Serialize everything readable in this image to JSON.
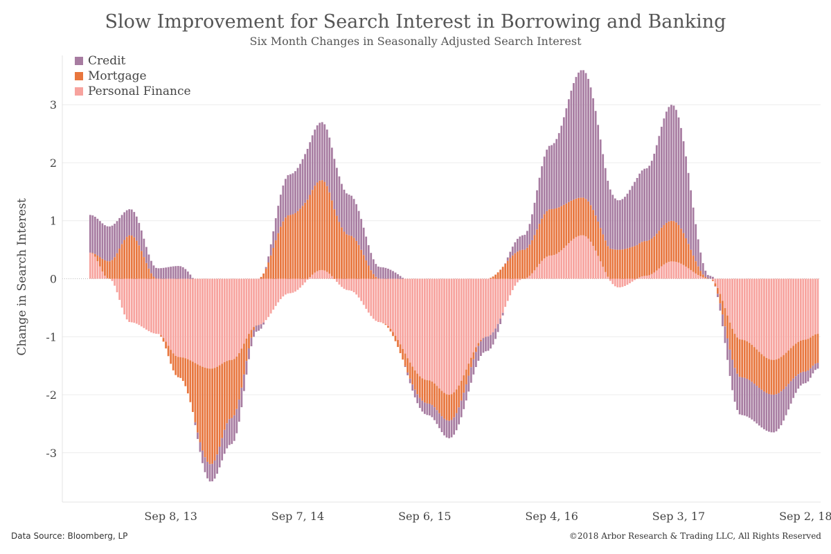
{
  "header": {
    "title": "Slow Improvement for Search Interest in Borrowing and Banking",
    "subtitle": "Six Month Changes in Seasonally Adjusted Search Interest"
  },
  "footer": {
    "source": "Data Source: Bloomberg, LP",
    "copyright": "©2018 Arbor Research & Trading LLC, All Rights Reserved"
  },
  "legend": [
    {
      "label": "Credit",
      "color": "#a77ca1"
    },
    {
      "label": "Mortgage",
      "color": "#e8763e"
    },
    {
      "label": "Personal Finance",
      "color": "#f7a39e"
    }
  ],
  "chart_data": {
    "type": "bar",
    "stacked": true,
    "ylabel": "Change in Search Interest",
    "ylim": [
      -3.85,
      3.85
    ],
    "yticks": [
      3,
      2,
      1,
      0,
      -1,
      -2,
      -3
    ],
    "ytick_labels": [
      "3",
      "2",
      "1",
      "0",
      "-1",
      "-2",
      "-3"
    ],
    "xlim": [
      "2012-11-01",
      "2018-10-15"
    ],
    "xticks": [
      "2013-09-08",
      "2014-09-07",
      "2015-09-06",
      "2016-09-04",
      "2017-09-03",
      "2018-09-02"
    ],
    "xtick_labels": [
      "Sep 8, 13",
      "Sep 7, 14",
      "Sep 6, 15",
      "Sep 4, 16",
      "Sep 3, 17",
      "Sep 2, 18"
    ],
    "grid": true,
    "legend_position": "top-left",
    "bar_interval": "weekly",
    "key_points": [
      {
        "date": "2013-01-20",
        "credit": 0.65,
        "mortgage": 0.0,
        "personal_finance": 0.45
      },
      {
        "date": "2013-03-15",
        "credit": 0.6,
        "mortgage": 0.3,
        "personal_finance": 0.0
      },
      {
        "date": "2013-05-15",
        "credit": 0.45,
        "mortgage": 0.75,
        "personal_finance": -0.75
      },
      {
        "date": "2013-08-01",
        "credit": 0.18,
        "mortgage": 0.0,
        "personal_finance": -0.95
      },
      {
        "date": "2013-10-01",
        "credit": 0.22,
        "mortgage": -0.35,
        "personal_finance": -1.35
      },
      {
        "date": "2014-01-01",
        "credit": -0.3,
        "mortgage": -1.65,
        "personal_finance": -1.55
      },
      {
        "date": "2014-03-01",
        "credit": -0.45,
        "mortgage": -1.0,
        "personal_finance": -1.4
      },
      {
        "date": "2014-05-15",
        "credit": -0.1,
        "mortgage": 0.0,
        "personal_finance": -0.8
      },
      {
        "date": "2014-08-15",
        "credit": 0.7,
        "mortgage": 1.1,
        "personal_finance": -0.25
      },
      {
        "date": "2014-11-15",
        "credit": 1.0,
        "mortgage": 1.55,
        "personal_finance": 0.15
      },
      {
        "date": "2015-02-01",
        "credit": 0.7,
        "mortgage": 0.75,
        "personal_finance": -0.2
      },
      {
        "date": "2015-05-01",
        "credit": 0.2,
        "mortgage": 0.0,
        "personal_finance": -0.75
      },
      {
        "date": "2015-09-15",
        "credit": -0.2,
        "mortgage": -0.4,
        "personal_finance": -1.75
      },
      {
        "date": "2015-11-15",
        "credit": -0.3,
        "mortgage": -0.45,
        "personal_finance": -2.0
      },
      {
        "date": "2016-03-01",
        "credit": -0.25,
        "mortgage": 0.0,
        "personal_finance": -1.0
      },
      {
        "date": "2016-06-15",
        "credit": 0.25,
        "mortgage": 0.5,
        "personal_finance": 0.0
      },
      {
        "date": "2016-09-01",
        "credit": 1.1,
        "mortgage": 0.8,
        "personal_finance": 0.4
      },
      {
        "date": "2016-12-01",
        "credit": 2.2,
        "mortgage": 0.65,
        "personal_finance": 0.75
      },
      {
        "date": "2017-03-15",
        "credit": 0.85,
        "mortgage": 0.5,
        "personal_finance": -0.15
      },
      {
        "date": "2017-06-01",
        "credit": 1.25,
        "mortgage": 0.6,
        "personal_finance": 0.05
      },
      {
        "date": "2017-08-15",
        "credit": 2.0,
        "mortgage": 0.7,
        "personal_finance": 0.3
      },
      {
        "date": "2017-12-01",
        "credit": 0.05,
        "mortgage": 0.0,
        "personal_finance": 0.0
      },
      {
        "date": "2018-03-01",
        "credit": -0.65,
        "mortgage": -0.65,
        "personal_finance": -1.05
      },
      {
        "date": "2018-06-01",
        "credit": -0.65,
        "mortgage": -0.6,
        "personal_finance": -1.4
      },
      {
        "date": "2018-09-01",
        "credit": -0.2,
        "mortgage": -0.55,
        "personal_finance": -1.05
      },
      {
        "date": "2018-10-07",
        "credit": -0.1,
        "mortgage": -0.5,
        "personal_finance": -0.95
      }
    ]
  }
}
